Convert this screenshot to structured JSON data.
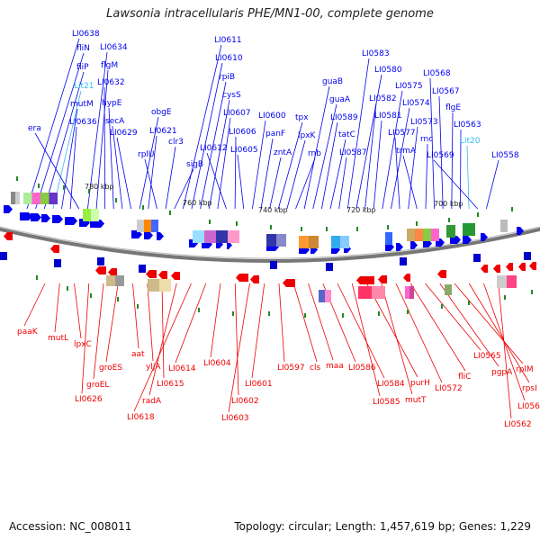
{
  "header": {
    "title": "Lawsonia intracellularis PHE/MN1-00, complete genome"
  },
  "footer": {
    "accession": "Accession: NC_008011",
    "summary": "Topology: circular; Length: 1,457,619 bp; Genes: 1,229"
  },
  "colors": {
    "forward_gene": "#0000ee",
    "reverse_gene": "#ee0000",
    "rna_gene": "#33bbee",
    "backbone": "#888888",
    "tick": "#228822"
  },
  "ruler_labels": [
    "780 kbp",
    "760 kbp",
    "740 kbp",
    "720 kbp",
    "700 kbp"
  ],
  "forward_labels": [
    "LI0638",
    "fliN",
    "fliP",
    "Lit21",
    "mutM",
    "LI0636",
    "era",
    "LI0634",
    "flgM",
    "LI0632",
    "hypE",
    "secA",
    "LI0629",
    "obgE",
    "LI0621",
    "rplU",
    "clr3",
    "sigB",
    "LI0611",
    "LI0610",
    "rpiB",
    "cysS",
    "LI0607",
    "LI0612",
    "LI0606",
    "LI0605",
    "LI0600",
    "panF",
    "zntA",
    "tpx",
    "lpxK",
    "rnb",
    "guaB",
    "guaA",
    "LI0589",
    "tatC",
    "LI0587",
    "LI0583",
    "LI0580",
    "LI0582",
    "LI0581",
    "LI0575",
    "LI0574",
    "LI0577",
    "LI0573",
    "trmA",
    "rnc",
    "LI0568",
    "LI0567",
    "flgE",
    "LI0563",
    "Lit20",
    "LI0569",
    "LI0558"
  ],
  "reverse_labels": [
    "paaK",
    "mutL",
    "lpxC",
    "LI0626",
    "groEL",
    "groES",
    "aat",
    "yljA",
    "LI0615",
    "radA",
    "LI0618",
    "LI0614",
    "LI0604",
    "LI0602",
    "LI0603",
    "LI0601",
    "LI0597",
    "cls",
    "maa",
    "LI0586",
    "LI0584",
    "LI0585",
    "purH",
    "mutT",
    "LI0572",
    "fliC",
    "LI0565",
    "pgpA",
    "rplM",
    "rpsI",
    "LI0561",
    "LI0562"
  ]
}
